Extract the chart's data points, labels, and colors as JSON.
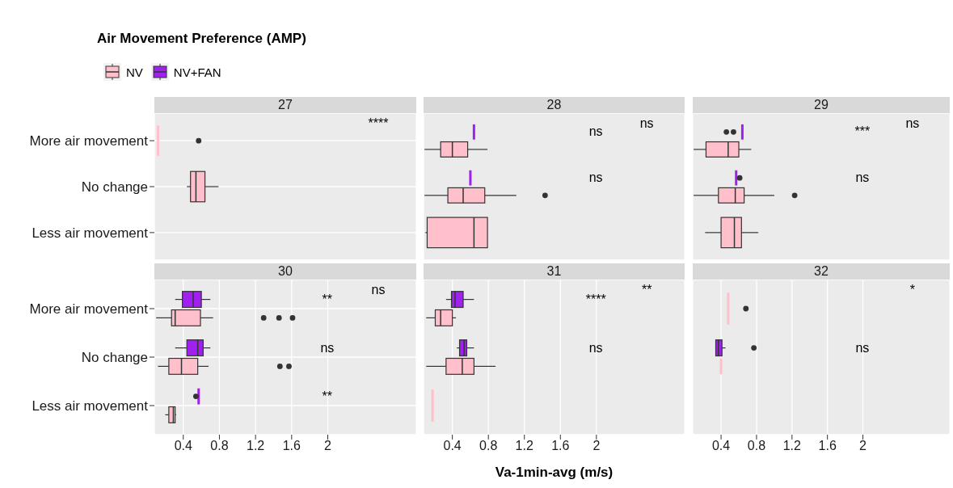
{
  "chart_data": [
    {
      "type": "box",
      "orientation": "horizontal",
      "title": "27",
      "annotations": [
        "Air Movement Preference (AMP)",
        "****"
      ],
      "legend": "top left",
      "grid": true,
      "tick_labels": "y",
      "categories": [
        "More air movement",
        "No change",
        "Less air movement"
      ],
      "xlim": [
        0.08,
        2.98
      ],
      "xticks": [
        0.4,
        0.8,
        1.2,
        1.6,
        2
      ],
      "series": [
        {
          "name": "NV",
          "color": "#ffc0cb",
          "boxes": [
            {
              "low": 0.12,
              "q1": 0.12,
              "median": 0.12,
              "q3": 0.12,
              "high": 0.12,
              "outliers": [
                0.57
              ]
            },
            {
              "low": 0.44,
              "q1": 0.48,
              "median": 0.54,
              "q3": 0.64,
              "high": 0.79
            },
            null
          ]
        },
        {
          "name": "NV+FAN",
          "color": "#a020f0",
          "boxes": [
            null,
            null,
            null
          ]
        }
      ]
    },
    {
      "type": "box",
      "orientation": "horizontal",
      "title": "28",
      "annotations": [
        "ns",
        "ns",
        "ns"
      ],
      "grid": true,
      "tick_labels": false,
      "categories": [
        "More air movement",
        "No change",
        "Less air movement"
      ],
      "xlim": [
        0.08,
        2.98
      ],
      "xticks": [
        0.4,
        0.8,
        1.2,
        1.6,
        2
      ],
      "series": [
        {
          "color": "#ffc0cb",
          "boxes": [
            {
              "low": 0.09,
              "q1": 0.27,
              "median": 0.4,
              "q3": 0.57,
              "high": 0.79
            },
            {
              "low": 0.09,
              "q1": 0.35,
              "median": 0.52,
              "q3": 0.76,
              "high": 1.11,
              "outliers": [
                1.43
              ]
            },
            {
              "low": 0.1,
              "q1": 0.12,
              "median": 0.64,
              "q3": 0.79,
              "high": 0.79
            }
          ]
        },
        {
          "color": "#a020f0",
          "boxes": [
            {
              "low": 0.64,
              "q1": 0.64,
              "median": 0.64,
              "q3": 0.64,
              "high": 0.64
            },
            {
              "low": 0.6,
              "q1": 0.6,
              "median": 0.6,
              "q3": 0.6,
              "high": 0.6
            },
            null
          ]
        }
      ]
    },
    {
      "type": "box",
      "orientation": "horizontal",
      "title": "29",
      "annotations": [
        "ns",
        "***",
        "ns"
      ],
      "grid": true,
      "tick_labels": false,
      "categories": [
        "More air movement",
        "No change",
        "Less air movement"
      ],
      "xlim": [
        0.08,
        2.98
      ],
      "xticks": [
        0.4,
        0.8,
        1.2,
        1.6,
        2
      ],
      "series": [
        {
          "color": "#ffc0cb",
          "boxes": [
            {
              "low": 0.09,
              "q1": 0.23,
              "median": 0.48,
              "q3": 0.6,
              "high": 0.74
            },
            {
              "low": 0.09,
              "q1": 0.37,
              "median": 0.56,
              "q3": 0.66,
              "high": 1.0,
              "outliers": [
                1.23
              ]
            },
            {
              "low": 0.22,
              "q1": 0.4,
              "median": 0.55,
              "q3": 0.63,
              "high": 0.82
            }
          ]
        },
        {
          "color": "#a020f0",
          "boxes": [
            {
              "low": 0.64,
              "q1": 0.64,
              "median": 0.64,
              "q3": 0.64,
              "high": 0.64,
              "outliers": [
                0.46,
                0.54
              ]
            },
            {
              "low": 0.57,
              "q1": 0.57,
              "median": 0.57,
              "q3": 0.57,
              "high": 0.57,
              "outliers": [
                0.61
              ]
            },
            null
          ]
        }
      ]
    },
    {
      "type": "box",
      "orientation": "horizontal",
      "title": "30",
      "annotations": [
        "ns",
        "**",
        "ns",
        "**"
      ],
      "grid": true,
      "categories": [
        "More air movement",
        "No change",
        "Less air movement"
      ],
      "xlim": [
        0.08,
        2.98
      ],
      "xticks": [
        0.4,
        0.8,
        1.2,
        1.6,
        2
      ],
      "series": [
        {
          "color": "#ffc0cb",
          "boxes": [
            {
              "low": 0.1,
              "q1": 0.27,
              "median": 0.31,
              "q3": 0.59,
              "high": 0.73,
              "outliers": [
                1.29,
                1.46,
                1.61
              ]
            },
            {
              "low": 0.12,
              "q1": 0.24,
              "median": 0.38,
              "q3": 0.56,
              "high": 0.68,
              "outliers": [
                1.47,
                1.57
              ]
            },
            {
              "low": 0.2,
              "q1": 0.24,
              "median": 0.29,
              "q3": 0.31,
              "high": 0.32
            }
          ]
        },
        {
          "color": "#a020f0",
          "boxes": [
            {
              "low": 0.31,
              "q1": 0.39,
              "median": 0.51,
              "q3": 0.6,
              "high": 0.7
            },
            {
              "low": 0.31,
              "q1": 0.44,
              "median": 0.56,
              "q3": 0.62,
              "high": 0.7
            },
            {
              "low": 0.57,
              "q1": 0.57,
              "median": 0.57,
              "q3": 0.57,
              "high": 0.57,
              "outliers": [
                0.54
              ]
            }
          ]
        }
      ]
    },
    {
      "type": "box",
      "orientation": "horizontal",
      "title": "31",
      "xlabel": "Va-1min-avg (m/s)",
      "annotations": [
        "**",
        "****",
        "ns"
      ],
      "grid": true,
      "tick_labels": "x",
      "categories": [
        "More air movement",
        "No change",
        "Less air movement"
      ],
      "xlim": [
        0.08,
        2.98
      ],
      "xticks": [
        0.4,
        0.8,
        1.2,
        1.6,
        2
      ],
      "series": [
        {
          "color": "#ffc0cb",
          "boxes": [
            {
              "low": 0.11,
              "q1": 0.21,
              "median": 0.27,
              "q3": 0.4,
              "high": 0.44
            },
            {
              "low": 0.11,
              "q1": 0.33,
              "median": 0.51,
              "q3": 0.64,
              "high": 0.88
            },
            {
              "low": 0.18,
              "q1": 0.18,
              "median": 0.18,
              "q3": 0.18,
              "high": 0.18
            }
          ]
        },
        {
          "color": "#a020f0",
          "boxes": [
            {
              "low": 0.33,
              "q1": 0.39,
              "median": 0.43,
              "q3": 0.52,
              "high": 0.64
            },
            {
              "low": 0.45,
              "q1": 0.48,
              "median": 0.53,
              "q3": 0.56,
              "high": 0.64
            },
            null
          ]
        }
      ]
    },
    {
      "type": "box",
      "orientation": "horizontal",
      "title": "32",
      "annotations": [
        "*",
        "ns"
      ],
      "grid": true,
      "tick_labels": "x",
      "categories": [
        "More air movement",
        "No change",
        "Less air movement"
      ],
      "xlim": [
        0.08,
        2.98
      ],
      "xticks": [
        0.4,
        0.8,
        1.2,
        1.6,
        2
      ],
      "series": [
        {
          "color": "#ffc0cb",
          "boxes": [
            {
              "low": 0.48,
              "q1": 0.48,
              "median": 0.48,
              "q3": 0.48,
              "high": 0.48,
              "outliers": [
                0.68
              ]
            },
            {
              "low": 0.4,
              "q1": 0.4,
              "median": 0.4,
              "q3": 0.4,
              "high": 0.4
            },
            null
          ]
        },
        {
          "color": "#a020f0",
          "boxes": [
            null,
            {
              "low": 0.34,
              "q1": 0.34,
              "median": 0.37,
              "q3": 0.41,
              "high": 0.45,
              "outliers": [
                0.77
              ]
            },
            null
          ]
        }
      ]
    }
  ]
}
